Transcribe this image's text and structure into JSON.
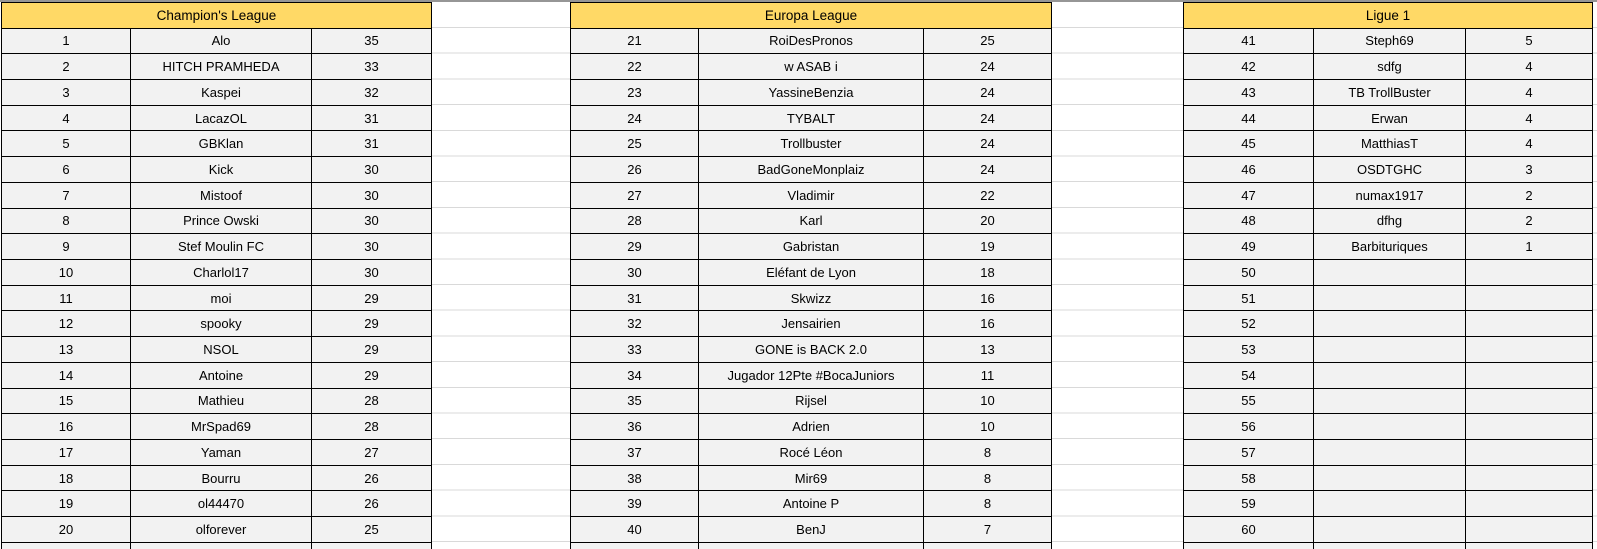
{
  "sheet": {
    "tables": [
      {
        "title": "Champion's League",
        "rows": [
          [
            "1",
            "Alo",
            "35"
          ],
          [
            "2",
            "HITCH PRAMHEDA",
            "33"
          ],
          [
            "3",
            "Kaspei",
            "32"
          ],
          [
            "4",
            "LacazOL",
            "31"
          ],
          [
            "5",
            "GBKlan",
            "31"
          ],
          [
            "6",
            "Kick",
            "30"
          ],
          [
            "7",
            "Mistoof",
            "30"
          ],
          [
            "8",
            "Prince Owski",
            "30"
          ],
          [
            "9",
            "Stef Moulin FC",
            "30"
          ],
          [
            "10",
            "Charlol17",
            "30"
          ],
          [
            "11",
            "moi",
            "29"
          ],
          [
            "12",
            "spooky",
            "29"
          ],
          [
            "13",
            "NSOL",
            "29"
          ],
          [
            "14",
            "Antoine",
            "29"
          ],
          [
            "15",
            "Mathieu",
            "28"
          ],
          [
            "16",
            "MrSpad69",
            "28"
          ],
          [
            "17",
            "Yaman",
            "27"
          ],
          [
            "18",
            "Bourru",
            "26"
          ],
          [
            "19",
            "ol44470",
            "26"
          ],
          [
            "20",
            "olforever",
            "25"
          ]
        ]
      },
      {
        "title": "Europa League",
        "rows": [
          [
            "21",
            "RoiDesPronos",
            "25"
          ],
          [
            "22",
            "w ASAB i",
            "24"
          ],
          [
            "23",
            "YassineBenzia",
            "24"
          ],
          [
            "24",
            "TYBALT",
            "24"
          ],
          [
            "25",
            "Trollbuster",
            "24"
          ],
          [
            "26",
            "BadGoneMonplaiz",
            "24"
          ],
          [
            "27",
            "Vladimir",
            "22"
          ],
          [
            "28",
            "Karl",
            "20"
          ],
          [
            "29",
            "Gabristan",
            "19"
          ],
          [
            "30",
            "Eléfant de Lyon",
            "18"
          ],
          [
            "31",
            "Skwizz",
            "16"
          ],
          [
            "32",
            "Jensairien",
            "16"
          ],
          [
            "33",
            "GONE is BACK 2.0",
            "13"
          ],
          [
            "34",
            "Jugador 12Pte #BocaJuniors",
            "11"
          ],
          [
            "35",
            "Rijsel",
            "10"
          ],
          [
            "36",
            "Adrien",
            "10"
          ],
          [
            "37",
            "Rocé Léon",
            "8"
          ],
          [
            "38",
            "Mir69",
            "8"
          ],
          [
            "39",
            "Antoine P",
            "8"
          ],
          [
            "40",
            "BenJ",
            "7"
          ]
        ]
      },
      {
        "title": "Ligue 1",
        "rows": [
          [
            "41",
            "Steph69",
            "5"
          ],
          [
            "42",
            "sdfg",
            "4"
          ],
          [
            "43",
            "TB TrollBuster",
            "4"
          ],
          [
            "44",
            "Erwan",
            "4"
          ],
          [
            "45",
            "MatthiasT",
            "4"
          ],
          [
            "46",
            "OSDTGHC",
            "3"
          ],
          [
            "47",
            "numax1917",
            "2"
          ],
          [
            "48",
            "dfhg",
            "2"
          ],
          [
            "49",
            "Barbituriques",
            "1"
          ],
          [
            "50",
            "",
            ""
          ],
          [
            "51",
            "",
            ""
          ],
          [
            "52",
            "",
            ""
          ],
          [
            "53",
            "",
            ""
          ],
          [
            "54",
            "",
            ""
          ],
          [
            "55",
            "",
            ""
          ],
          [
            "56",
            "",
            ""
          ],
          [
            "57",
            "",
            ""
          ],
          [
            "58",
            "",
            ""
          ],
          [
            "59",
            "",
            ""
          ],
          [
            "60",
            "",
            ""
          ]
        ]
      }
    ]
  },
  "colors": {
    "header_bg": "#FFD966",
    "row_bg": "#F2F2F2",
    "border": "#000000",
    "gap_gridline": "#D9D9D9",
    "top_strip": "#969696"
  }
}
